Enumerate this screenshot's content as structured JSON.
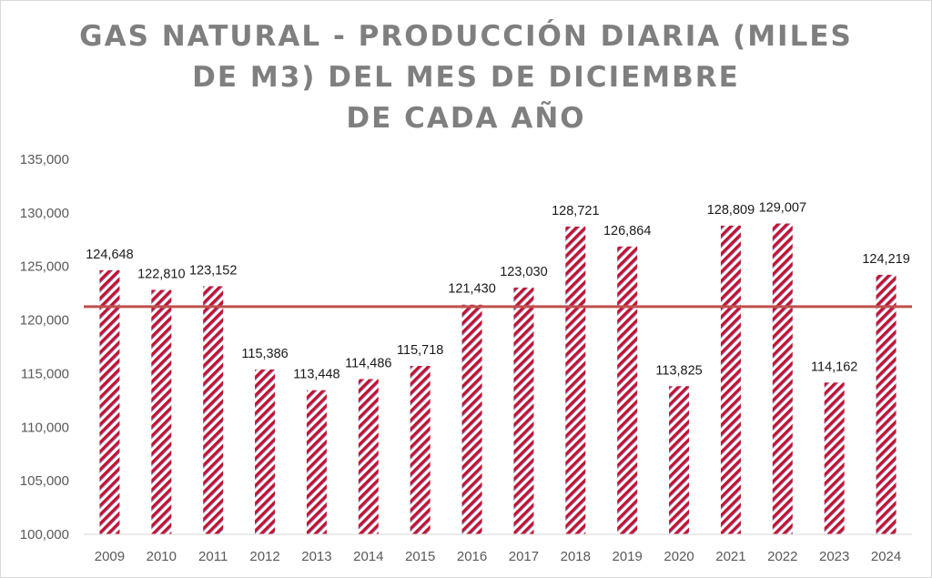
{
  "chart_data": {
    "type": "bar",
    "title_lines": [
      "GAS NATURAL - PRODUCCIÓN DIARIA (MILES",
      "DE M3) DEL MES DE DICIEMBRE",
      "DE CADA AÑO"
    ],
    "categories": [
      "2009",
      "2010",
      "2011",
      "2012",
      "2013",
      "2014",
      "2015",
      "2016",
      "2017",
      "2018",
      "2019",
      "2020",
      "2021",
      "2022",
      "2023",
      "2024"
    ],
    "values": [
      124648,
      122810,
      123152,
      115386,
      113448,
      114486,
      115718,
      121430,
      123030,
      128721,
      126864,
      113825,
      128809,
      129007,
      114162,
      124219
    ],
    "value_labels": [
      "124,648",
      "122,810",
      "123,152",
      "115,386",
      "113,448",
      "114,486",
      "115,718",
      "121,430",
      "123,030",
      "128,721",
      "126,864",
      "113,825",
      "128,809",
      "129,007",
      "114,162",
      "124,219"
    ],
    "ylim": [
      100000,
      135000
    ],
    "yticks": [
      100000,
      105000,
      110000,
      115000,
      120000,
      125000,
      130000,
      135000
    ],
    "ytick_labels": [
      "100,000",
      "105,000",
      "110,000",
      "115,000",
      "120,000",
      "125,000",
      "130,000",
      "135,000"
    ],
    "reference_line": {
      "value": 121250,
      "color": "#c0504d"
    },
    "bar_colors": {
      "stripe": "#c8102e",
      "stripe_alt": "#7b86c4",
      "base": "#ffffff"
    },
    "grid": false
  }
}
